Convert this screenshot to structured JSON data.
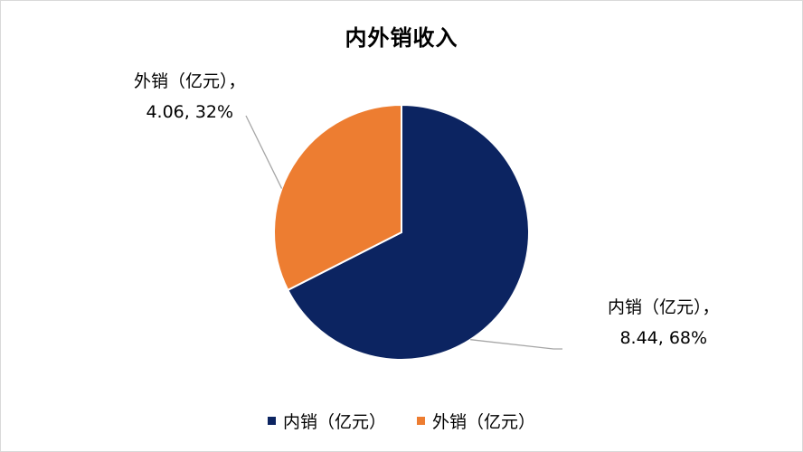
{
  "chart_data": {
    "type": "pie",
    "title": "内外销收入",
    "slices": [
      {
        "name": "内销（亿元）",
        "value": 8.44,
        "percent": "68%",
        "color": "#0c2461",
        "label_line1": "内销（亿元），",
        "label_line2": "8.44, 68%"
      },
      {
        "name": "外销（亿元）",
        "value": 4.06,
        "percent": "32%",
        "color": "#ed7d31",
        "label_line1": "外销（亿元），",
        "label_line2": "4.06, 32%"
      }
    ],
    "legend": [
      "内销（亿元）",
      "外销（亿元）"
    ],
    "legend_position": "bottom"
  }
}
